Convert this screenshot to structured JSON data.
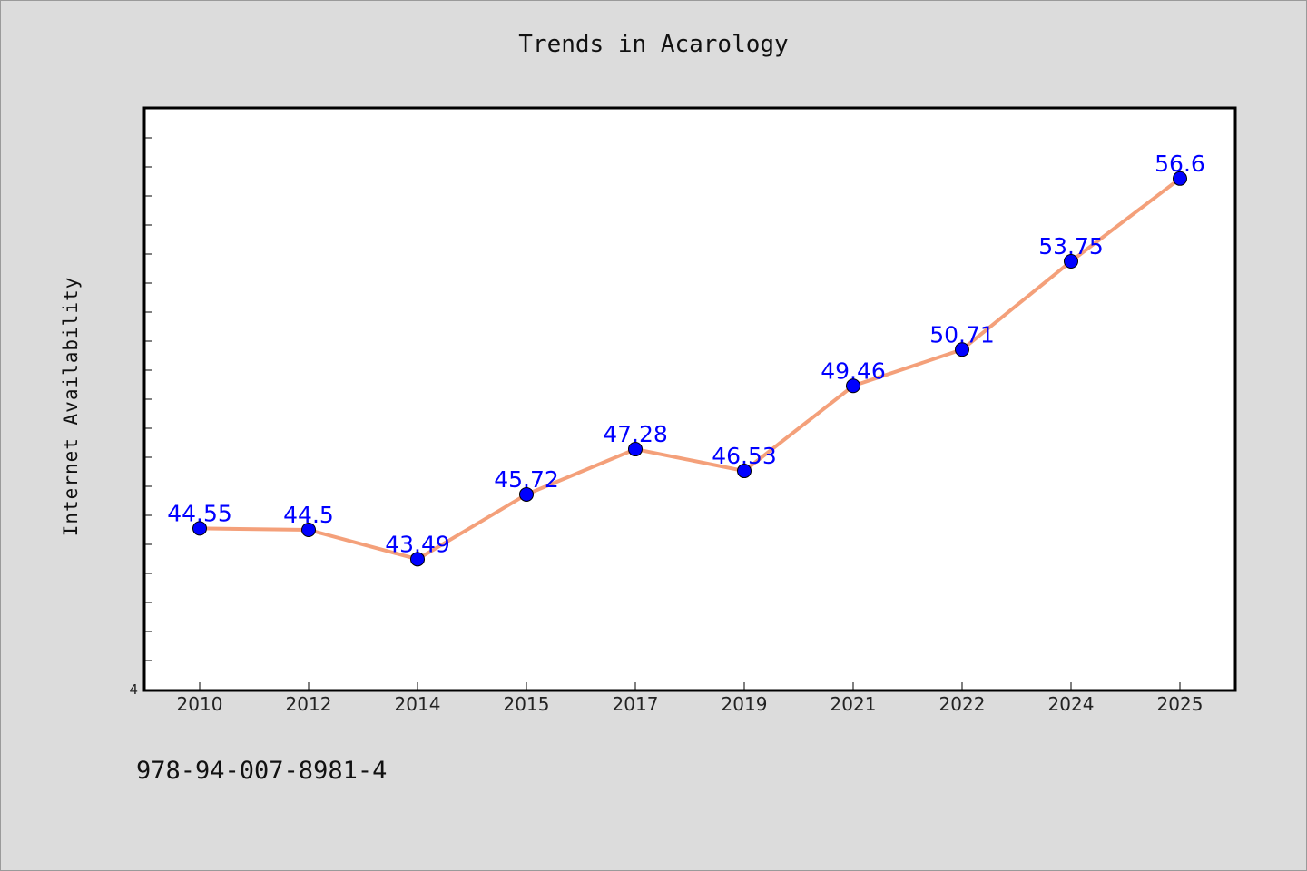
{
  "chart_data": {
    "type": "line",
    "title": "Trends in Acarology",
    "xlabel": "",
    "ylabel": "Internet Availability",
    "categories": [
      "2010",
      "2012",
      "2014",
      "2015",
      "2017",
      "2019",
      "2021",
      "2022",
      "2024",
      "2025"
    ],
    "series": [
      {
        "values": [
          44.55,
          44.5,
          43.49,
          45.72,
          47.28,
          46.53,
          49.46,
          50.71,
          53.75,
          56.6
        ],
        "line_color": "#f4a07a",
        "marker_color": "#0000ff"
      }
    ],
    "data_labels": [
      "44.55",
      "44.5",
      "43.49",
      "45.72",
      "47.28",
      "46.53",
      "49.46",
      "50.71",
      "53.75",
      "56.6"
    ],
    "y_tick_labels": [
      "4"
    ],
    "ylim": [
      39,
      59
    ],
    "grid": false,
    "legend": "none"
  },
  "footer": {
    "code": "978-94-007-8981-4"
  }
}
